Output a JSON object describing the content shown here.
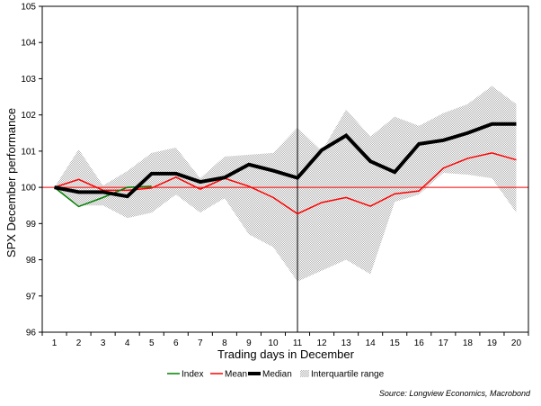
{
  "chart_data": {
    "type": "line",
    "title": "",
    "xlabel": "Trading days in December",
    "ylabel": "SPX December performance",
    "categories": [
      "1",
      "2",
      "3",
      "4",
      "5",
      "6",
      "7",
      "8",
      "9",
      "10",
      "11",
      "12",
      "13",
      "14",
      "15",
      "16",
      "17",
      "18",
      "19",
      "20"
    ],
    "ylim": [
      96,
      105
    ],
    "yticks": [
      "96",
      "97",
      "98",
      "99",
      "100",
      "101",
      "102",
      "103",
      "104",
      "105"
    ],
    "reference_line": 100,
    "vertical_marker": "11",
    "grid": false,
    "legend_position": "bottom-center",
    "source": "Source: Longview Economics, Macrobond",
    "interquartile_range": {
      "name": "Interquartile range",
      "color": "#c8c8c8",
      "low": [
        100.0,
        99.5,
        99.5,
        99.15,
        99.3,
        99.8,
        99.3,
        99.7,
        98.7,
        98.35,
        97.4,
        97.7,
        98.0,
        97.6,
        99.6,
        99.8,
        100.4,
        100.35,
        100.25,
        99.3
      ],
      "high": [
        100.0,
        101.05,
        100.05,
        100.45,
        100.95,
        101.1,
        100.25,
        100.85,
        100.9,
        100.95,
        101.65,
        101.0,
        102.15,
        101.4,
        101.95,
        101.7,
        102.05,
        102.3,
        102.8,
        102.3
      ]
    },
    "series": [
      {
        "name": "Index",
        "color": "#008000",
        "width": 1.5,
        "values": [
          100.0,
          99.47,
          99.72,
          100.0,
          100.03,
          null,
          null,
          null,
          null,
          null,
          null,
          null,
          null,
          null,
          null,
          null,
          null,
          null,
          null,
          null
        ]
      },
      {
        "name": "Mean",
        "color": "#ff0000",
        "width": 1.5,
        "values": [
          100.0,
          100.22,
          99.92,
          99.92,
          99.98,
          100.28,
          99.95,
          100.25,
          100.03,
          99.72,
          99.27,
          99.58,
          99.72,
          99.48,
          99.82,
          99.9,
          100.53,
          100.8,
          100.95,
          100.76
        ]
      },
      {
        "name": "Median",
        "color": "#000000",
        "width": 4,
        "values": [
          100.0,
          99.87,
          99.87,
          99.75,
          100.38,
          100.38,
          100.15,
          100.27,
          100.63,
          100.46,
          100.26,
          101.03,
          101.43,
          100.72,
          100.42,
          101.2,
          101.3,
          101.5,
          101.75,
          101.75
        ]
      }
    ]
  }
}
